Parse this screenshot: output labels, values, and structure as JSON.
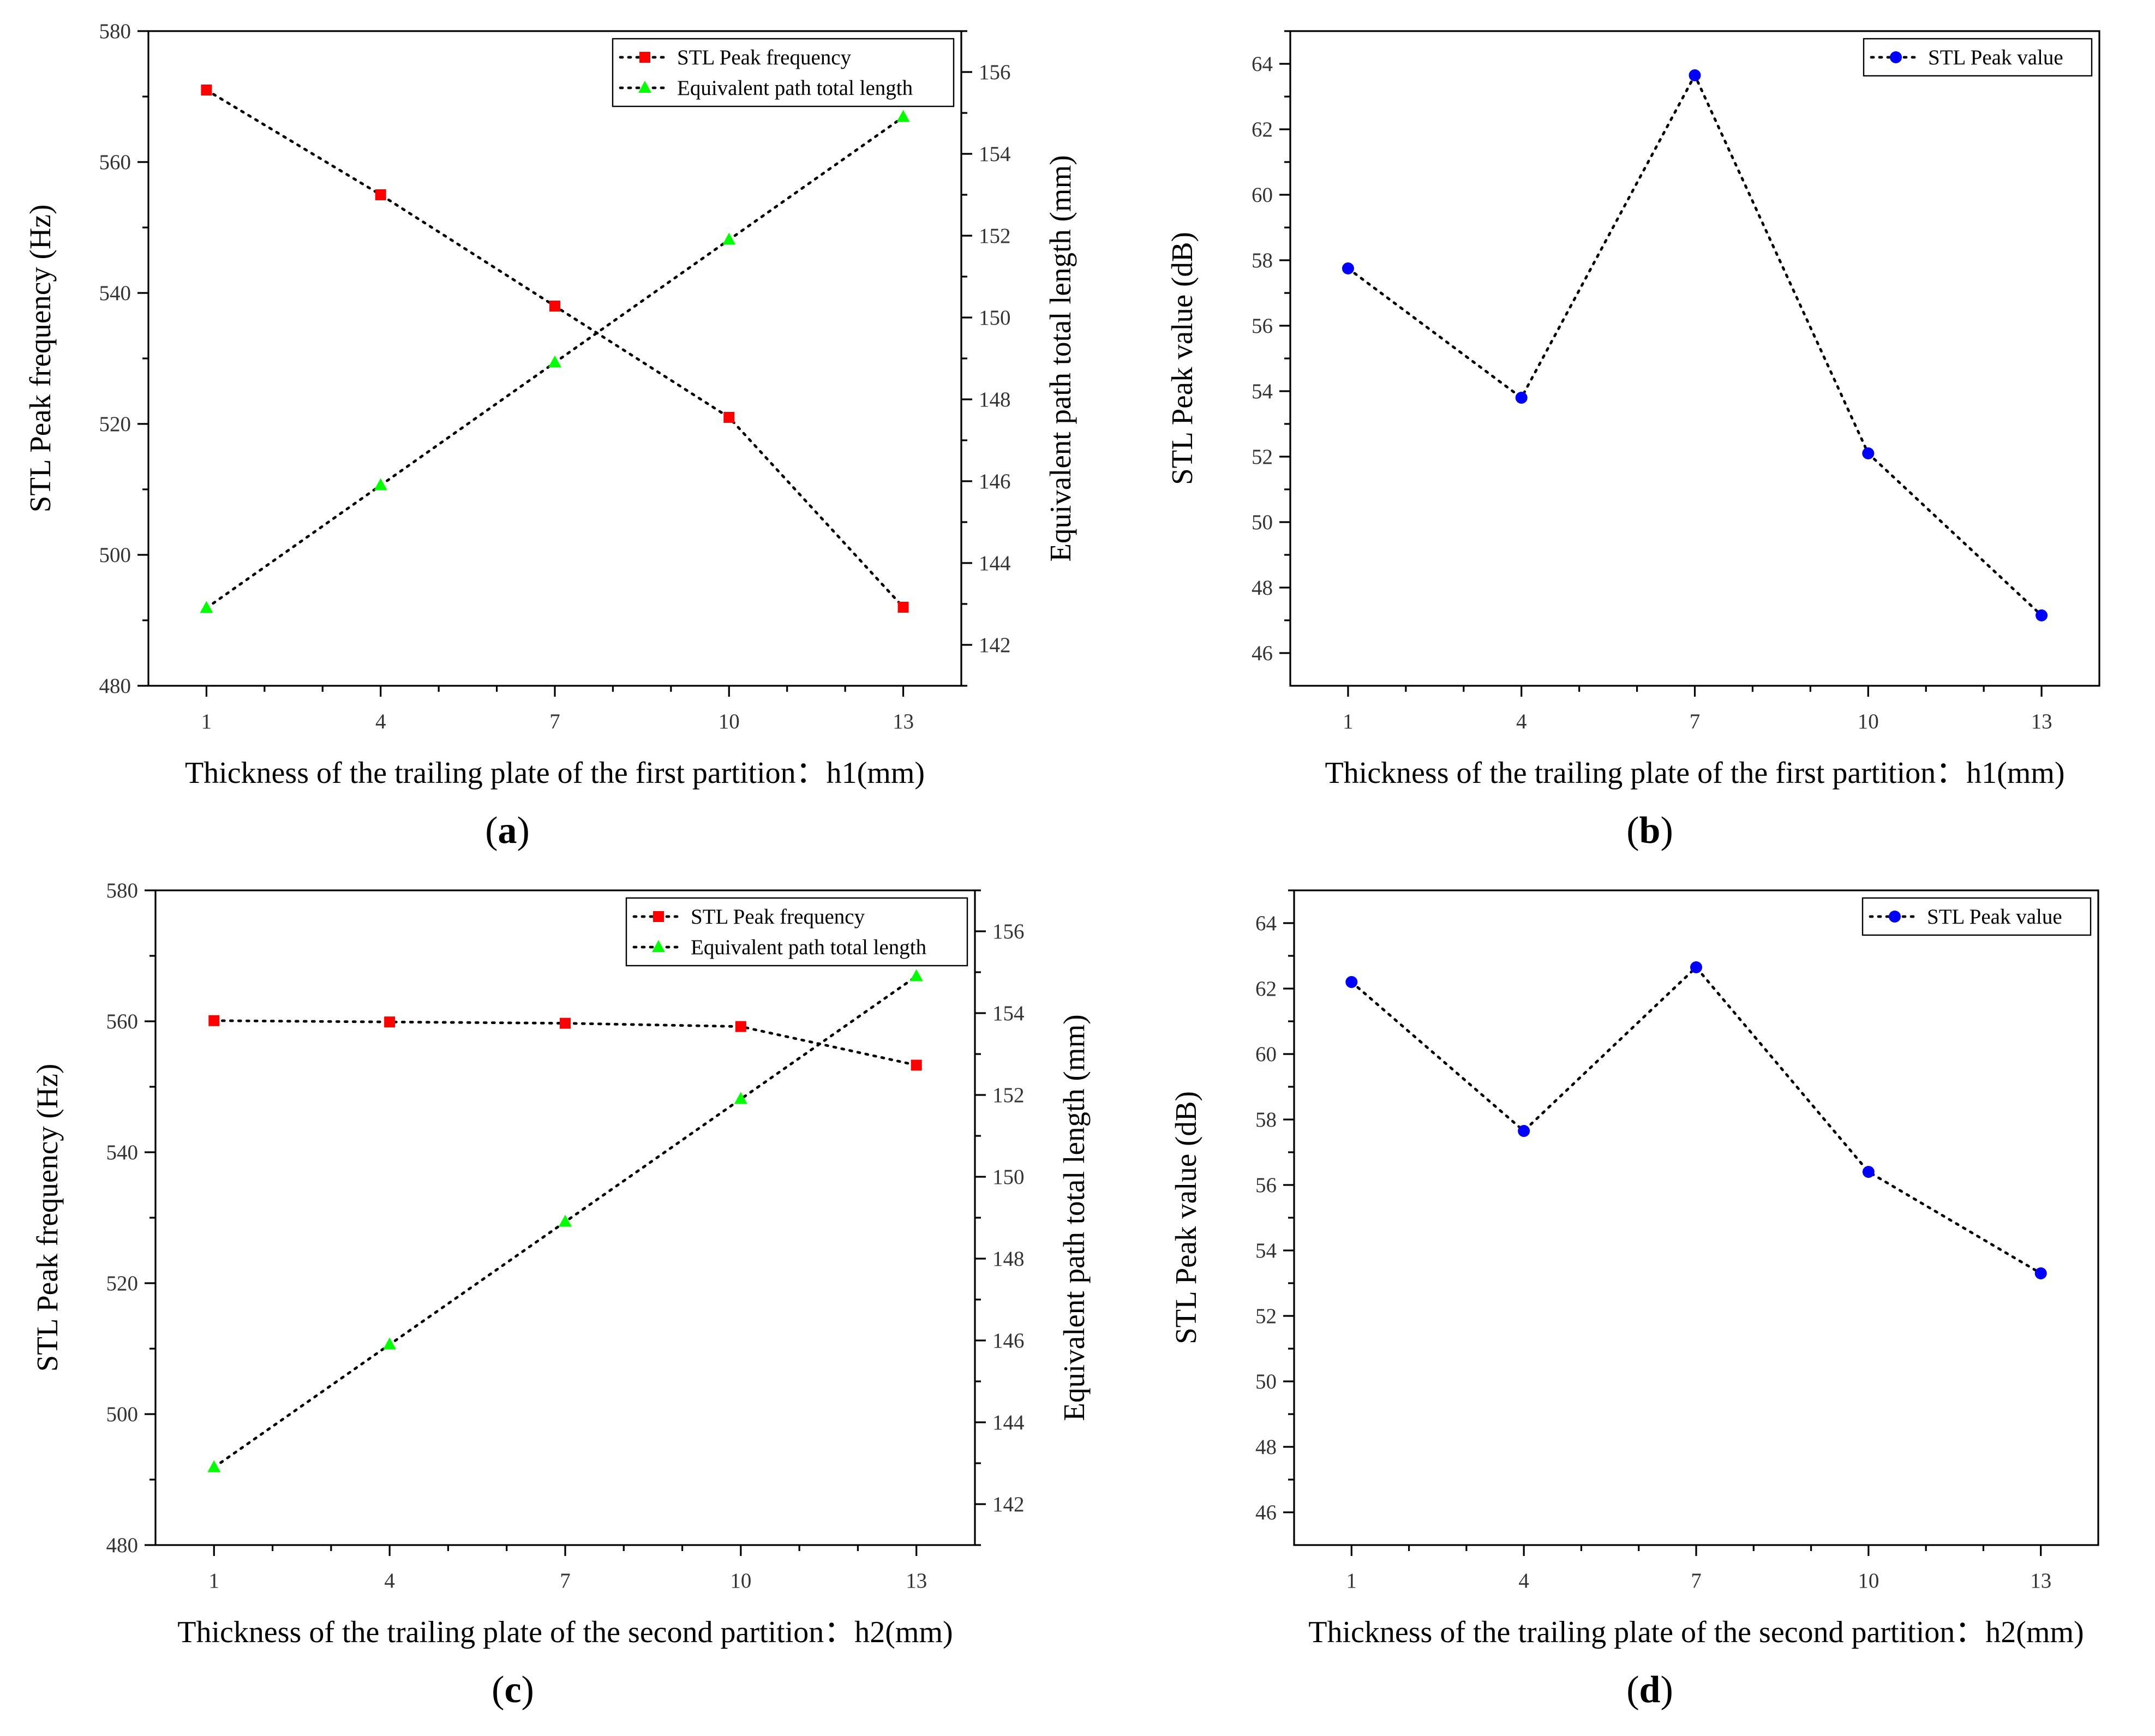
{
  "chart_data": [
    {
      "panel": "a",
      "type": "line",
      "xlabel": "Thickness of the trailing plate of the first partition：h1(mm)",
      "ylabel": "STL Peak frequency (Hz)",
      "y2label": "Equivalent path total length (mm)",
      "x": [
        1,
        4,
        7,
        10,
        13
      ],
      "xlim": [
        0,
        14
      ],
      "xticks": [
        1,
        4,
        7,
        10,
        13
      ],
      "ylim": [
        480,
        580
      ],
      "yticks": [
        480,
        500,
        520,
        540,
        560,
        580
      ],
      "y2lim": [
        141,
        157
      ],
      "y2ticks": [
        142,
        144,
        146,
        148,
        150,
        152,
        154,
        156
      ],
      "legend": "top-right",
      "series": [
        {
          "name": "STL Peak frequency",
          "axis": "left",
          "marker": "square",
          "color": "#ff0000",
          "values": [
            571,
            555,
            538,
            521,
            492
          ]
        },
        {
          "name": "Equivalent path total length",
          "axis": "right",
          "marker": "triangle",
          "color": "#00ff00",
          "values": [
            142.9,
            145.9,
            148.9,
            151.9,
            154.9
          ]
        }
      ]
    },
    {
      "panel": "b",
      "type": "line",
      "xlabel": "Thickness of the trailing plate of the first partition：h1(mm)",
      "ylabel": "STL Peak value (dB)",
      "x": [
        1,
        4,
        7,
        10,
        13
      ],
      "xlim": [
        0,
        14
      ],
      "xticks": [
        1,
        4,
        7,
        10,
        13
      ],
      "ylim": [
        45,
        65
      ],
      "yticks": [
        46,
        48,
        50,
        52,
        54,
        56,
        58,
        60,
        62,
        64
      ],
      "legend": "top-right",
      "series": [
        {
          "name": "STL Peak value",
          "axis": "left",
          "marker": "circle",
          "color": "#0000ff",
          "values": [
            57.75,
            53.8,
            63.65,
            52.1,
            47.15
          ]
        }
      ]
    },
    {
      "panel": "c",
      "type": "line",
      "xlabel": "Thickness of the trailing plate of the second partition：h2(mm)",
      "ylabel": "STL Peak frequency (Hz)",
      "y2label": "Equivalent path total length (mm)",
      "x": [
        1,
        4,
        7,
        10,
        13
      ],
      "xlim": [
        0,
        14
      ],
      "xticks": [
        1,
        4,
        7,
        10,
        13
      ],
      "ylim": [
        480,
        580
      ],
      "yticks": [
        480,
        500,
        520,
        540,
        560,
        580
      ],
      "y2lim": [
        141,
        157
      ],
      "y2ticks": [
        142,
        144,
        146,
        148,
        150,
        152,
        154,
        156
      ],
      "legend": "top-right",
      "series": [
        {
          "name": "STL Peak frequency",
          "axis": "left",
          "marker": "square",
          "color": "#ff0000",
          "values": [
            560.1,
            559.9,
            559.7,
            559.2,
            553.3
          ]
        },
        {
          "name": "Equivalent path total length",
          "axis": "right",
          "marker": "triangle",
          "color": "#00ff00",
          "values": [
            142.9,
            145.9,
            148.9,
            151.9,
            154.9
          ]
        }
      ]
    },
    {
      "panel": "d",
      "type": "line",
      "xlabel": "Thickness of the trailing plate of the second partition：h2(mm)",
      "ylabel": "STL Peak value (dB)",
      "x": [
        1,
        4,
        7,
        10,
        13
      ],
      "xlim": [
        0,
        14
      ],
      "xticks": [
        1,
        4,
        7,
        10,
        13
      ],
      "ylim": [
        45,
        65
      ],
      "yticks": [
        46,
        48,
        50,
        52,
        54,
        56,
        58,
        60,
        62,
        64
      ],
      "legend": "top-right",
      "series": [
        {
          "name": "STL Peak value",
          "axis": "left",
          "marker": "circle",
          "color": "#0000ff",
          "values": [
            62.2,
            57.65,
            62.65,
            56.4,
            53.3
          ]
        }
      ]
    }
  ]
}
